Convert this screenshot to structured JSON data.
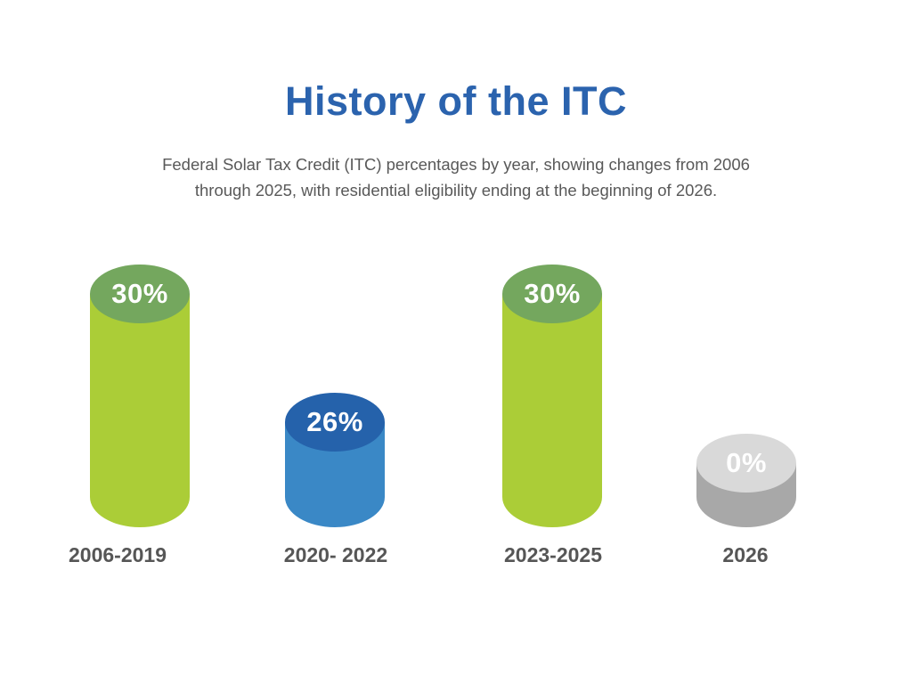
{
  "header": {
    "title": "History of the ITC",
    "subtitle": "Federal Solar Tax Credit (ITC) percentages by year, showing changes from 2006 through 2025, with residential eligibility ending at the beginning of 2026.",
    "subtitle_lines": [
      "Federal Solar Tax Credit (ITC) percentages by year, showing changes",
      "from 2006 through 2025, with residential eligibility ending at the",
      "beginning of 2026."
    ]
  },
  "palette": {
    "background": "#ffffff",
    "title_color": "#2b63ae",
    "subtitle_color": "#595959",
    "category_label_color": "#565656",
    "value_text_color": "#ffffff"
  },
  "chart_data": {
    "type": "bar",
    "title": "History of the ITC",
    "subtitle": "Federal Solar Tax Credit (ITC) percentages by year, showing changes from 2006 through 2025, with residential eligibility ending at the beginning of 2026.",
    "categories": [
      "2006-2019",
      "2020- 2022",
      "2023-2025",
      "2026"
    ],
    "values": [
      30,
      26,
      30,
      0
    ],
    "unit": "%",
    "ylim": [
      0,
      30
    ],
    "grid": false,
    "legend": false,
    "xlabel": "",
    "ylabel": "",
    "bars": [
      {
        "label": "2006-2019",
        "value": 30,
        "value_label": "30%",
        "body_color": "#abcd37",
        "top_color": "#74a75e"
      },
      {
        "label": "2020- 2022",
        "value": 26,
        "value_label": "26%",
        "body_color": "#3a88c6",
        "top_color": "#2562ab"
      },
      {
        "label": "2023-2025",
        "value": 30,
        "value_label": "30%",
        "body_color": "#abcd37",
        "top_color": "#74a75e"
      },
      {
        "label": "2026",
        "value": 0,
        "value_label": "0%",
        "body_color": "#a8a8a8",
        "top_color": "#d9d9d9"
      }
    ]
  }
}
